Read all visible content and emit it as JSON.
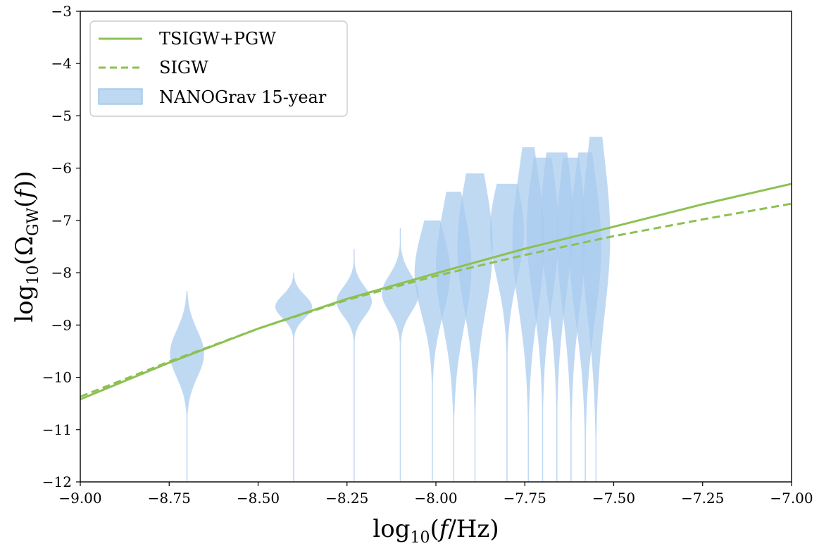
{
  "chart_data": {
    "type": "line",
    "xlabel": "log10(f/Hz)",
    "ylabel": "log10(ΩGW(f))",
    "xlim": [
      -9.0,
      -7.0
    ],
    "ylim": [
      -12,
      -3
    ],
    "x_ticks": [
      "−9.00",
      "−8.75",
      "−8.50",
      "−8.25",
      "−8.00",
      "−7.75",
      "−7.50",
      "−7.25",
      "−7.00"
    ],
    "y_ticks": [
      "−12",
      "−11",
      "−10",
      "−9",
      "−8",
      "−7",
      "−6",
      "−5",
      "−4",
      "−3"
    ],
    "grid": false,
    "legend_position": "top-left",
    "colors": {
      "lines": "#8cc152",
      "violins": "#a8cbee"
    },
    "series": [
      {
        "name": "TSIGW+PGW",
        "style": "solid",
        "x": [
          -9.0,
          -8.75,
          -8.5,
          -8.25,
          -8.0,
          -7.75,
          -7.5,
          -7.25,
          -7.0
        ],
        "y": [
          -10.42,
          -9.72,
          -9.07,
          -8.5,
          -8.01,
          -7.54,
          -7.12,
          -6.69,
          -6.3
        ]
      },
      {
        "name": "SIGW",
        "style": "dashed",
        "x": [
          -9.0,
          -8.75,
          -8.5,
          -8.25,
          -8.0,
          -7.75,
          -7.5,
          -7.25,
          -7.0
        ],
        "y": [
          -10.37,
          -9.7,
          -9.07,
          -8.52,
          -8.06,
          -7.66,
          -7.3,
          -6.98,
          -6.68
        ]
      }
    ],
    "violins": {
      "name": "NANOGrav 15-year",
      "items": [
        {
          "x": -8.7,
          "center": -9.55,
          "top": -8.35,
          "halfwidth": 0.048,
          "sigma": 0.45
        },
        {
          "x": -8.4,
          "center": -8.65,
          "top": -8.0,
          "halfwidth": 0.052,
          "sigma": 0.22
        },
        {
          "x": -8.23,
          "center": -8.55,
          "top": -7.55,
          "halfwidth": 0.05,
          "sigma": 0.28
        },
        {
          "x": -8.1,
          "center": -8.4,
          "top": -7.15,
          "halfwidth": 0.052,
          "sigma": 0.35
        },
        {
          "x": -8.01,
          "center": -8.0,
          "top": -7.0,
          "halfwidth": 0.05,
          "sigma": 0.8
        },
        {
          "x": -7.95,
          "center": -7.9,
          "top": -6.45,
          "halfwidth": 0.05,
          "sigma": 1.1
        },
        {
          "x": -7.89,
          "center": -7.5,
          "top": -6.1,
          "halfwidth": 0.05,
          "sigma": 1.2
        },
        {
          "x": -7.8,
          "center": -7.2,
          "top": -6.3,
          "halfwidth": 0.048,
          "sigma": 0.9
        },
        {
          "x": -7.74,
          "center": -7.4,
          "top": -5.6,
          "halfwidth": 0.045,
          "sigma": 1.3
        },
        {
          "x": -7.7,
          "center": -7.2,
          "top": -5.8,
          "halfwidth": 0.045,
          "sigma": 1.3
        },
        {
          "x": -7.66,
          "center": -7.0,
          "top": -5.7,
          "halfwidth": 0.045,
          "sigma": 1.4
        },
        {
          "x": -7.62,
          "center": -7.3,
          "top": -5.8,
          "halfwidth": 0.04,
          "sigma": 1.4
        },
        {
          "x": -7.58,
          "center": -7.5,
          "top": -5.7,
          "halfwidth": 0.045,
          "sigma": 1.4
        },
        {
          "x": -7.55,
          "center": -7.3,
          "top": -5.4,
          "halfwidth": 0.04,
          "sigma": 1.5
        }
      ]
    }
  }
}
